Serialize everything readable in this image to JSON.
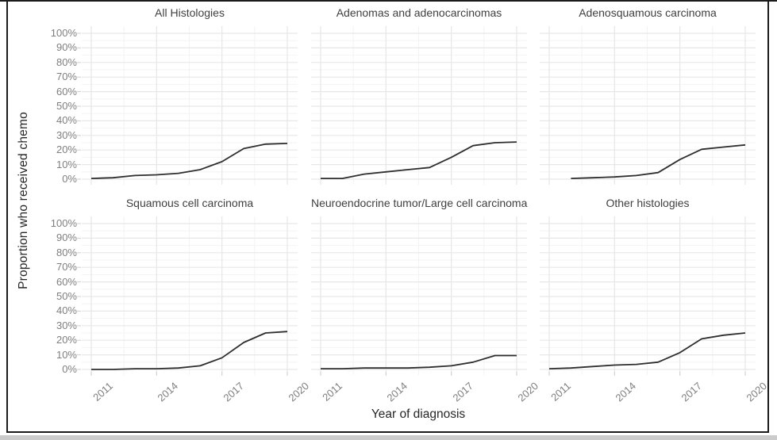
{
  "chart_data": {
    "type": "line",
    "layout": "facet grid 2 rows x 3 columns, shared axes",
    "xlabel": "Year of diagnosis",
    "ylabel": "Proportion who received chemo",
    "x_ticks": [
      2011,
      2014,
      2017,
      2020
    ],
    "x_tick_labels": [
      "2011",
      "2014",
      "2017",
      "2020"
    ],
    "y_ticks": [
      0,
      10,
      20,
      30,
      40,
      50,
      60,
      70,
      80,
      90,
      100
    ],
    "y_tick_labels": [
      "0%",
      "10%",
      "20%",
      "30%",
      "40%",
      "50%",
      "60%",
      "70%",
      "80%",
      "90%",
      "100%"
    ],
    "xlim": [
      2011,
      2020
    ],
    "ylim": [
      0,
      100
    ],
    "units": "percent",
    "legend": "none",
    "grid": {
      "major": true,
      "minor": true,
      "major_color": "#e7e7e7",
      "minor_color": "#f3f3f3"
    },
    "line_color": "#2e2e2e",
    "facets": [
      {
        "title": "All Histologies",
        "x": [
          2011,
          2012,
          2013,
          2014,
          2015,
          2016,
          2017,
          2018,
          2019,
          2020
        ],
        "values": [
          0.5,
          1,
          2.5,
          3,
          4,
          6.5,
          12,
          21,
          24,
          24.5
        ]
      },
      {
        "title": "Adenomas and adenocarcinomas",
        "x": [
          2011,
          2012,
          2013,
          2014,
          2015,
          2016,
          2017,
          2018,
          2019,
          2020
        ],
        "values": [
          0.5,
          0.5,
          3.5,
          5,
          6.5,
          8,
          15,
          23,
          25,
          25.5
        ]
      },
      {
        "title": "Adenosquamous carcinoma",
        "x": [
          2012,
          2013,
          2014,
          2015,
          2016,
          2017,
          2018,
          2019,
          2020
        ],
        "values": [
          0.5,
          1,
          1.5,
          2.5,
          4.5,
          13.5,
          20.5,
          22,
          23.5
        ]
      },
      {
        "title": "Squamous cell carcinoma",
        "x": [
          2011,
          2012,
          2013,
          2014,
          2015,
          2016,
          2017,
          2018,
          2019,
          2020
        ],
        "values": [
          0,
          0,
          0.5,
          0.5,
          1,
          2.5,
          8,
          18.5,
          25,
          26
        ]
      },
      {
        "title": "Neuroendocrine tumor/Large cell carcinoma",
        "x": [
          2011,
          2012,
          2013,
          2014,
          2015,
          2016,
          2017,
          2018,
          2019,
          2020
        ],
        "values": [
          0.5,
          0.5,
          1,
          1,
          1,
          1.5,
          2.5,
          5,
          9.5,
          9.5
        ]
      },
      {
        "title": "Other histologies",
        "x": [
          2011,
          2012,
          2013,
          2014,
          2015,
          2016,
          2017,
          2018,
          2019,
          2020
        ],
        "values": [
          0.5,
          1,
          2,
          3,
          3.5,
          5,
          11.5,
          21,
          23.5,
          25
        ]
      }
    ]
  }
}
